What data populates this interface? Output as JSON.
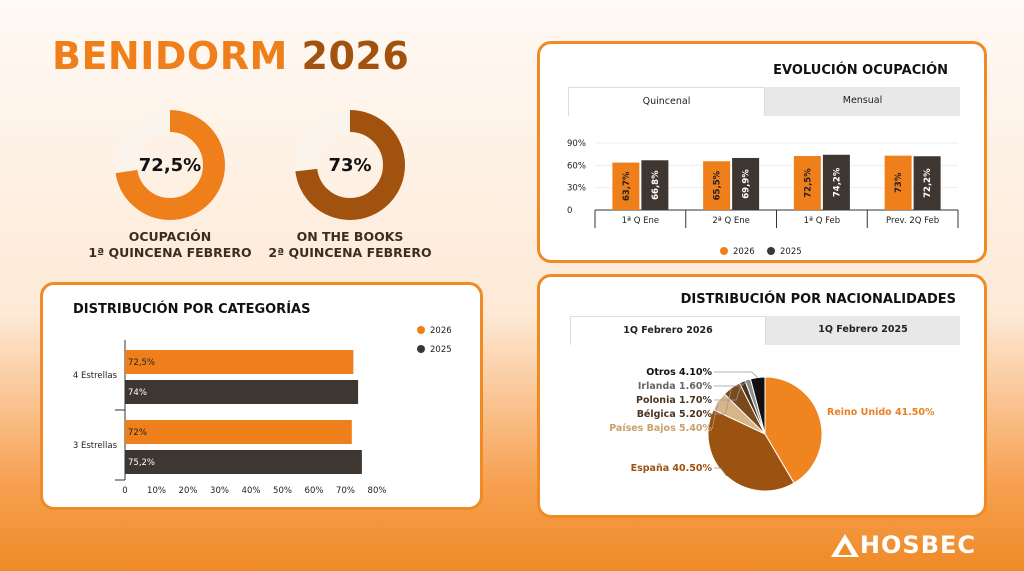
{
  "header": {
    "title_main": "BENIDORM",
    "title_year": "2026"
  },
  "kpis": [
    {
      "value_label": "72,5%",
      "fraction": 0.725,
      "line1": "OCUPACIÓN",
      "line2": "1ª QUINCENA FEBRERO",
      "color": "#ef7f1a",
      "track": "#fbf4ec"
    },
    {
      "value_label": "73%",
      "fraction": 0.73,
      "line1": "ON THE BOOKS",
      "line2": "2ª QUINCENA FEBRERO",
      "color": "#a0520e",
      "track": "#fbf4ec"
    }
  ],
  "evolucion": {
    "title": "EVOLUCIÓN OCUPACIÓN",
    "tabs": [
      "Quincenal",
      "Mensual"
    ],
    "active_tab": 0
  },
  "categorias": {
    "title": "DISTRIBUCIÓN POR CATEGORÍAS"
  },
  "nacionalidades": {
    "title": "DISTRIBUCIÓN POR NACIONALIDADES",
    "tabs": [
      "1Q Febrero 2026",
      "1Q Febrero 2025"
    ],
    "active_tab": 0
  },
  "logo": {
    "text": "HOSBEC"
  },
  "chart_data": [
    {
      "id": "evolucion",
      "type": "bar",
      "categories": [
        "1ª Q Ene",
        "2ª Q Ene",
        "1ª Q Feb",
        "Prev. 2Q Feb"
      ],
      "series": [
        {
          "name": "2026",
          "values": [
            63.7,
            65.5,
            72.5,
            73
          ],
          "labels": [
            "63,7%",
            "65,5%",
            "72,5%",
            "73%"
          ],
          "color": "#ef7f1a"
        },
        {
          "name": "2025",
          "values": [
            66.8,
            69.9,
            74.2,
            72.2
          ],
          "labels": [
            "66,8%",
            "69,9%",
            "74,2%",
            "72,2%"
          ],
          "color": "#3e3630"
        }
      ],
      "yticks": [
        "0",
        "30%",
        "60%",
        "90%"
      ],
      "ylim": [
        0,
        90
      ]
    },
    {
      "id": "categorias",
      "type": "bar",
      "orientation": "horizontal",
      "categories": [
        "4 Estrellas",
        "3 Estrellas"
      ],
      "series": [
        {
          "name": "2026",
          "values": [
            72.5,
            72
          ],
          "labels": [
            "72,5%",
            "72%"
          ],
          "color": "#ef7f1a"
        },
        {
          "name": "2025",
          "values": [
            74,
            75.2
          ],
          "labels": [
            "74%",
            "75,2%"
          ],
          "color": "#3e3630"
        }
      ],
      "xticks": [
        "0",
        "10%",
        "20%",
        "30%",
        "40%",
        "50%",
        "60%",
        "70%",
        "80%"
      ],
      "xlim": [
        0,
        80
      ],
      "legend": "top-right"
    },
    {
      "id": "nacionalidades",
      "type": "pie",
      "slices": [
        {
          "label": "Reino Unido 41.50%",
          "value": 41.5,
          "color": "#f0851f"
        },
        {
          "label": "España 40.50%",
          "value": 40.5,
          "color": "#9c5210"
        },
        {
          "label": "Países Bajos 5.40%",
          "value": 5.4,
          "color": "#d8b48a"
        },
        {
          "label": "Bélgica 5.20%",
          "value": 5.2,
          "color": "#7a4a1c"
        },
        {
          "label": "Polonia 1.70%",
          "value": 1.7,
          "color": "#4b3422"
        },
        {
          "label": "Irlanda 1.60%",
          "value": 1.6,
          "color": "#8e8e8e"
        },
        {
          "label": "Otros 4.10%",
          "value": 4.1,
          "color": "#111111"
        }
      ]
    }
  ]
}
